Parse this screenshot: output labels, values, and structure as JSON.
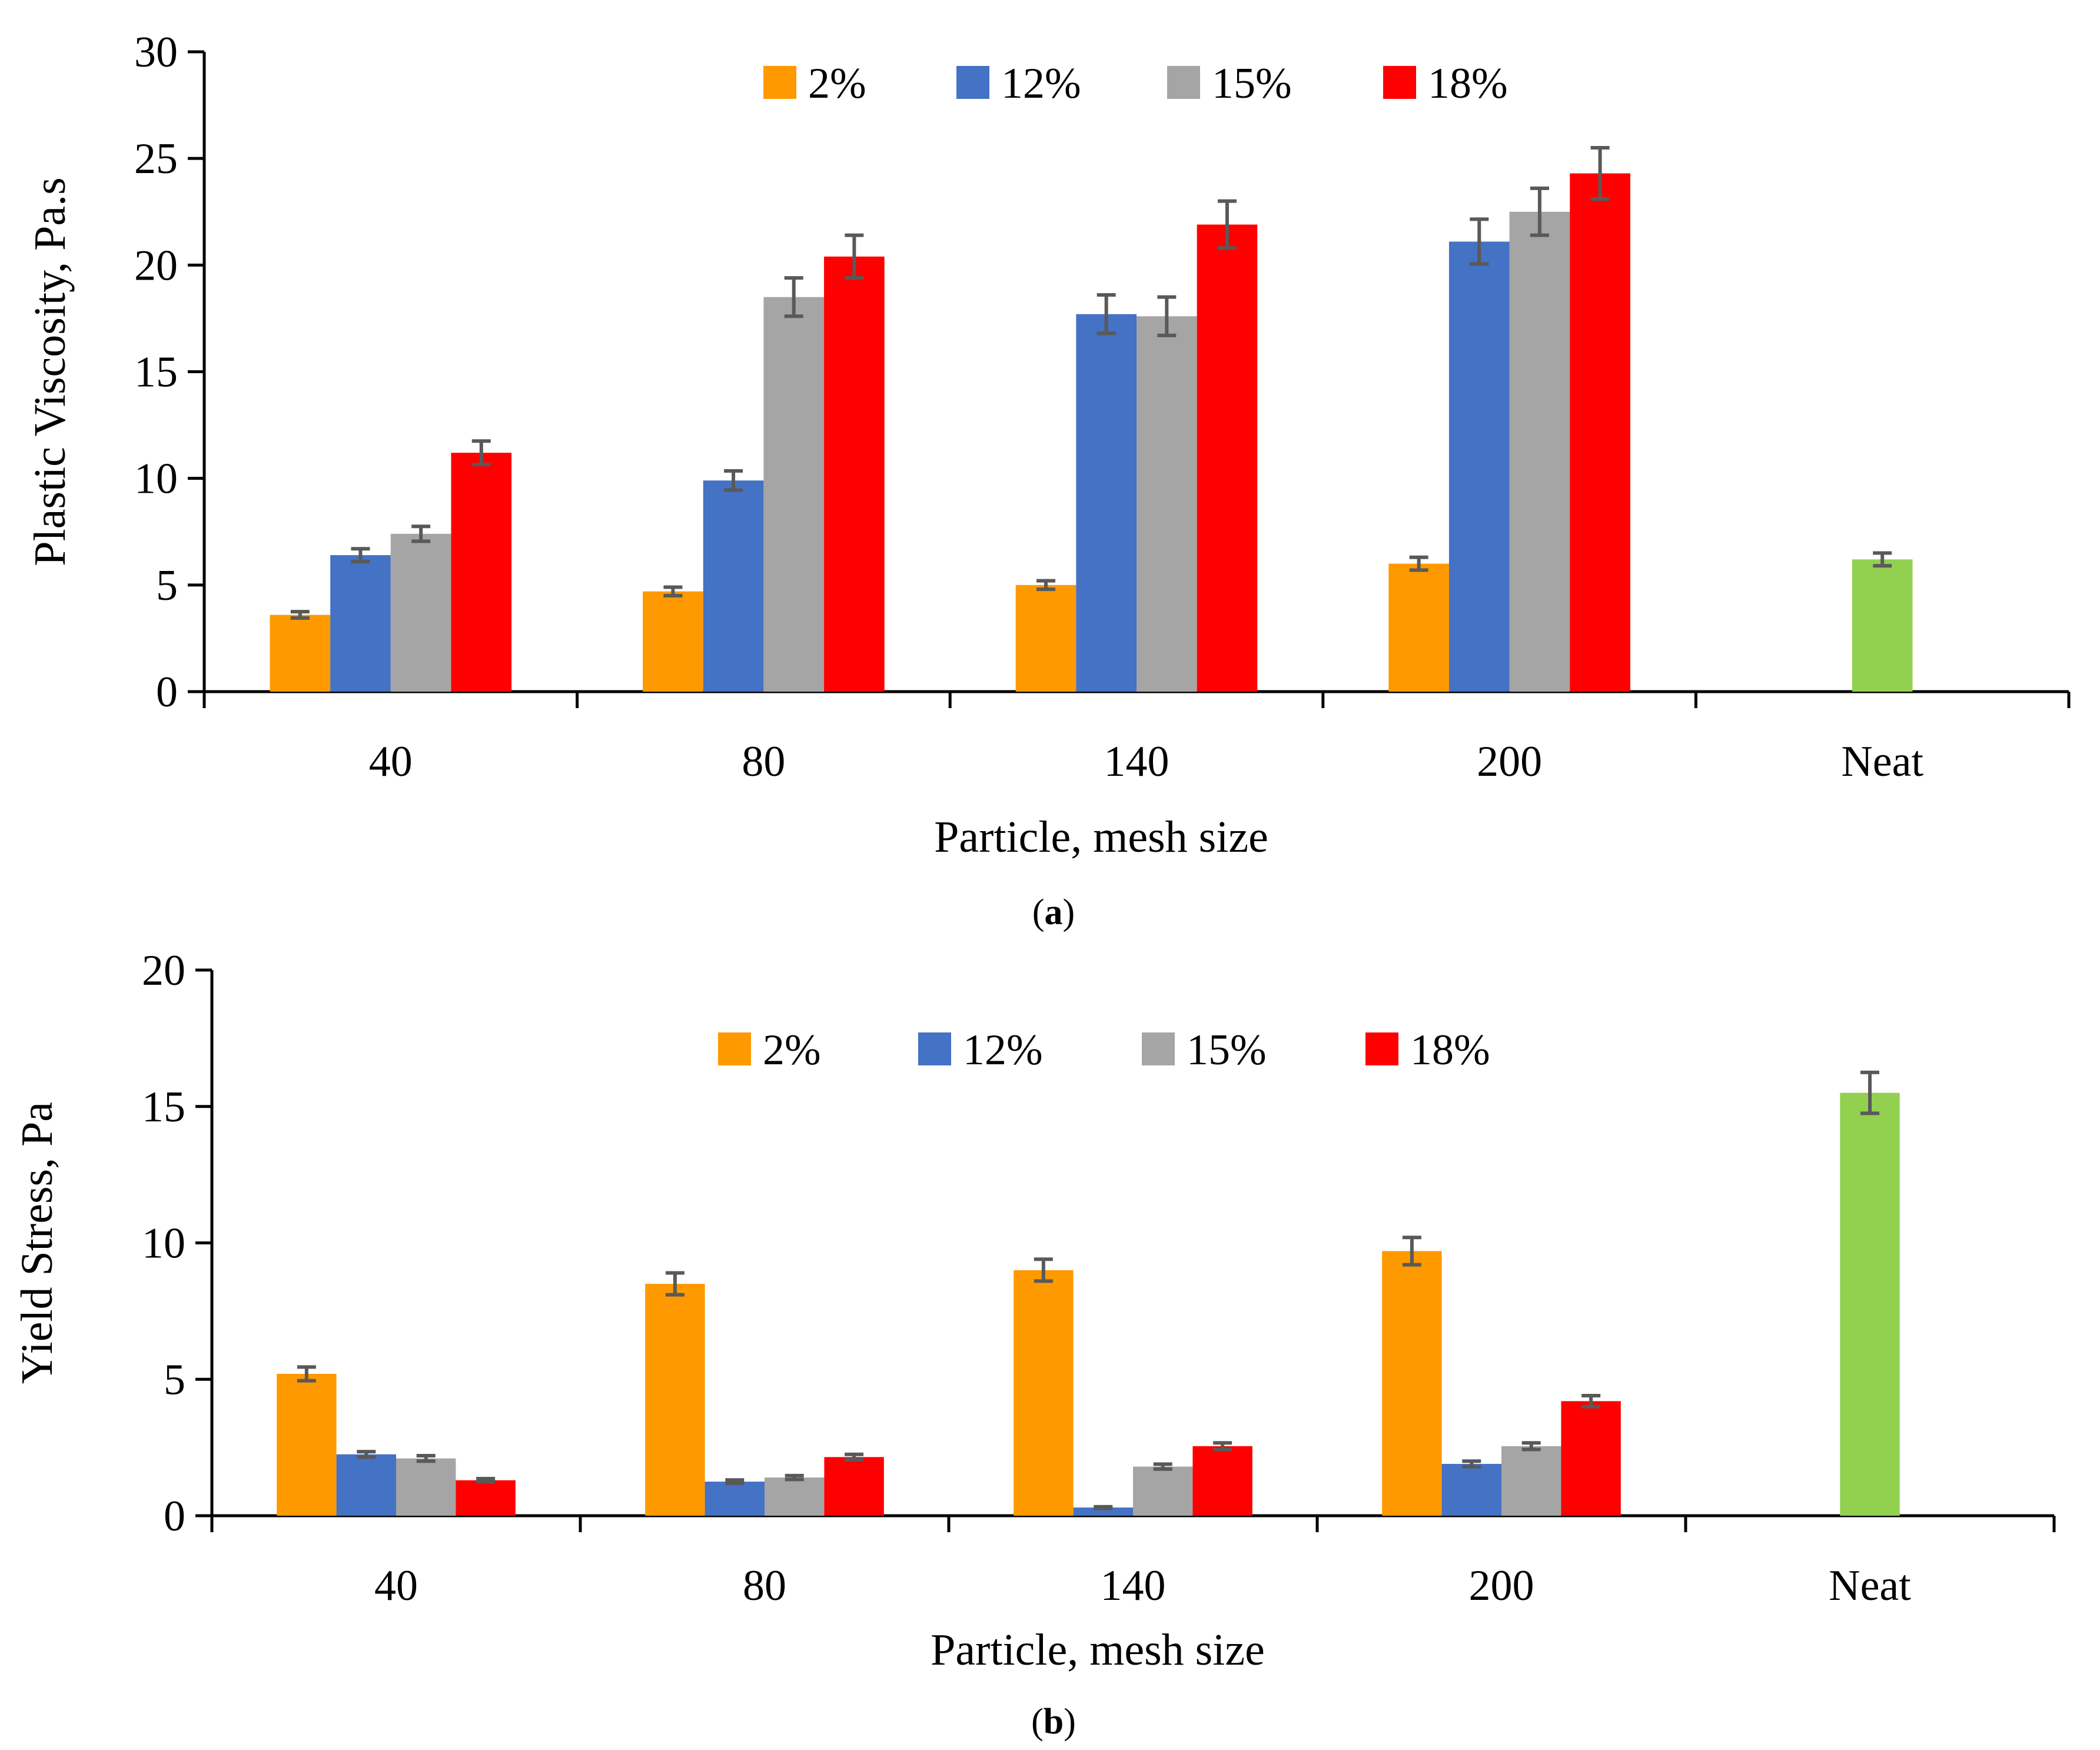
{
  "chart_data": [
    {
      "type": "bar",
      "panel": "a",
      "caption": {
        "open": "(",
        "letter": "a",
        "close": ")"
      },
      "categories": [
        "40",
        "80",
        "140",
        "200",
        "Neat"
      ],
      "series": [
        {
          "name": "2%",
          "color": "#FF9900",
          "values": [
            3.6,
            4.7,
            5.0,
            6.0,
            null
          ],
          "errors": [
            0.15,
            0.2,
            0.2,
            0.3,
            null
          ]
        },
        {
          "name": "12%",
          "color": "#4472C4",
          "values": [
            6.4,
            9.9,
            17.7,
            21.1,
            null
          ],
          "errors": [
            0.3,
            0.45,
            0.9,
            1.05,
            null
          ]
        },
        {
          "name": "15%",
          "color": "#A5A5A5",
          "values": [
            7.4,
            18.5,
            17.6,
            22.5,
            null
          ],
          "errors": [
            0.35,
            0.9,
            0.9,
            1.1,
            null
          ]
        },
        {
          "name": "18%",
          "color": "#FF0000",
          "values": [
            11.2,
            20.4,
            21.9,
            24.3,
            null
          ],
          "errors": [
            0.55,
            1.0,
            1.1,
            1.2,
            null
          ]
        },
        {
          "name": "Neat",
          "color": "#92D050",
          "values": [
            null,
            null,
            null,
            null,
            6.2
          ],
          "errors": [
            null,
            null,
            null,
            null,
            0.3
          ],
          "in_legend": false
        }
      ],
      "legend": [
        "2%",
        "12%",
        "15%",
        "18%"
      ],
      "legend_position": "top-center",
      "xlabel": "Particle, mesh size",
      "ylabel": "Plastic Viscosity, Pa.s",
      "ylim": [
        0,
        30
      ],
      "yticks": [
        "0",
        "5",
        "10",
        "15",
        "20",
        "25",
        "30"
      ],
      "grid": false
    },
    {
      "type": "bar",
      "panel": "b",
      "caption": {
        "open": "(",
        "letter": "b",
        "close": ")"
      },
      "categories": [
        "40",
        "80",
        "140",
        "200",
        "Neat"
      ],
      "series": [
        {
          "name": "2%",
          "color": "#FF9900",
          "values": [
            5.2,
            8.5,
            9.0,
            9.7,
            null
          ],
          "errors": [
            0.25,
            0.4,
            0.4,
            0.5,
            null
          ]
        },
        {
          "name": "12%",
          "color": "#4472C4",
          "values": [
            2.25,
            1.25,
            0.3,
            1.9,
            null
          ],
          "errors": [
            0.1,
            0.06,
            0.03,
            0.1,
            null
          ]
        },
        {
          "name": "15%",
          "color": "#A5A5A5",
          "values": [
            2.1,
            1.4,
            1.8,
            2.55,
            null
          ],
          "errors": [
            0.1,
            0.07,
            0.09,
            0.12,
            null
          ]
        },
        {
          "name": "18%",
          "color": "#FF0000",
          "values": [
            1.3,
            2.15,
            2.55,
            4.2,
            null
          ],
          "errors": [
            0.06,
            0.1,
            0.12,
            0.2,
            null
          ]
        },
        {
          "name": "Neat",
          "color": "#92D050",
          "values": [
            null,
            null,
            null,
            null,
            15.5
          ],
          "errors": [
            null,
            null,
            null,
            null,
            0.75
          ],
          "in_legend": false
        }
      ],
      "legend": [
        "2%",
        "12%",
        "15%",
        "18%"
      ],
      "legend_position": "top-center",
      "xlabel": "Particle, mesh size",
      "ylabel": "Yield Stress, Pa",
      "ylim": [
        0,
        20
      ],
      "yticks": [
        "0",
        "5",
        "10",
        "15",
        "20"
      ],
      "grid": false
    }
  ],
  "colors": {
    "axis": "#000000",
    "error_bar": "#595959"
  }
}
